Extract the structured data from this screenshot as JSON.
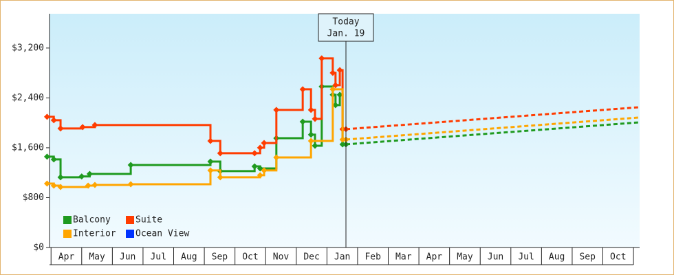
{
  "chart_data": {
    "type": "step-line",
    "xlim": [
      -0.05,
      19.2
    ],
    "ylim": [
      0,
      3750
    ],
    "xticks": [
      {
        "value": 0.5,
        "label": "Apr"
      },
      {
        "value": 1.5,
        "label": "May"
      },
      {
        "value": 2.5,
        "label": "Jun"
      },
      {
        "value": 3.5,
        "label": "Jul"
      },
      {
        "value": 4.5,
        "label": "Aug"
      },
      {
        "value": 5.5,
        "label": "Sep"
      },
      {
        "value": 6.5,
        "label": "Oct"
      },
      {
        "value": 7.5,
        "label": "Nov"
      },
      {
        "value": 8.5,
        "label": "Dec"
      },
      {
        "value": 9.5,
        "label": "Jan"
      },
      {
        "value": 10.5,
        "label": "Feb"
      },
      {
        "value": 11.5,
        "label": "Mar"
      },
      {
        "value": 12.5,
        "label": "Apr"
      },
      {
        "value": 13.5,
        "label": "May"
      },
      {
        "value": 14.5,
        "label": "Jun"
      },
      {
        "value": 15.5,
        "label": "Jul"
      },
      {
        "value": 16.5,
        "label": "Aug"
      },
      {
        "value": 17.5,
        "label": "Sep"
      },
      {
        "value": 18.5,
        "label": "Oct"
      }
    ],
    "yticks": [
      {
        "value": 0,
        "label": "$0"
      },
      {
        "value": 800,
        "label": "$800"
      },
      {
        "value": 1600,
        "label": "$1,600"
      },
      {
        "value": 2400,
        "label": "$2,400"
      },
      {
        "value": 3200,
        "label": "$3,200"
      }
    ],
    "grid": false,
    "legend": "bottom-left",
    "annotation": {
      "lines": [
        "Today",
        "Jan. 19"
      ],
      "x": 9.62
    },
    "series": [
      {
        "name": "Balcony",
        "color": "#1f9a1f",
        "x": [
          -0.13,
          0.09,
          0.31,
          1.0,
          1.26,
          2.6,
          5.2,
          5.52,
          6.64,
          6.82,
          7.35,
          8.21,
          8.48,
          8.61,
          8.83,
          9.19,
          9.28,
          9.42,
          9.51,
          9.62
        ],
        "values": [
          1457,
          1413,
          1126,
          1140,
          1180,
          1324,
          1379,
          1225,
          1302,
          1269,
          1754,
          2019,
          1810,
          1633,
          2582,
          2450,
          2284,
          2450,
          1655,
          1655
        ],
        "forecast": {
          "x": [
            9.62,
            19.2
          ],
          "values": [
            1655,
            2008
          ]
        }
      },
      {
        "name": "Suite",
        "color": "#ff3c00",
        "x": [
          -0.13,
          0.09,
          0.31,
          1.03,
          1.43,
          5.2,
          5.52,
          6.64,
          6.82,
          6.95,
          7.35,
          8.21,
          8.48,
          8.61,
          8.83,
          9.19,
          9.28,
          9.42,
          9.51,
          9.62
        ],
        "values": [
          2097,
          2042,
          1909,
          1931,
          1964,
          1710,
          1512,
          1512,
          1600,
          1677,
          2207,
          2538,
          2207,
          2064,
          3034,
          2802,
          2604,
          2846,
          1898,
          1898
        ],
        "forecast": {
          "x": [
            9.62,
            19.2
          ],
          "values": [
            1898,
            2251
          ]
        }
      },
      {
        "name": "Interior",
        "color": "#ffa500",
        "x": [
          -0.13,
          0.09,
          0.31,
          1.21,
          1.43,
          2.6,
          5.2,
          5.52,
          6.82,
          6.95,
          7.35,
          8.48,
          9.19,
          9.51,
          9.62
        ],
        "values": [
          1026,
          993,
          971,
          993,
          1004,
          1015,
          1236,
          1126,
          1159,
          1236,
          1445,
          1710,
          2538,
          1732,
          1732
        ],
        "forecast": {
          "x": [
            9.62,
            19.2
          ],
          "values": [
            1732,
            2086
          ]
        }
      },
      {
        "name": "Ocean View",
        "color": "#0033ff",
        "x": [],
        "values": []
      }
    ]
  }
}
